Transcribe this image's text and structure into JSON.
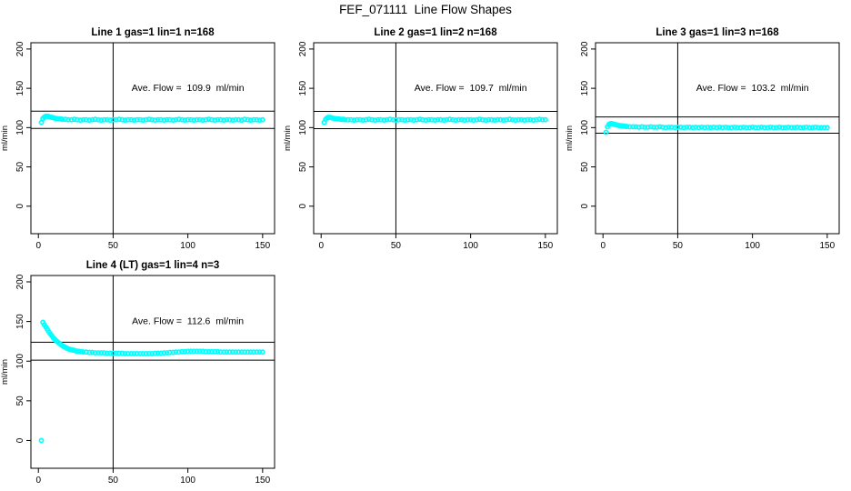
{
  "page_title": "FEF_071111  Line Flow Shapes",
  "colors": {
    "data_marker": "#00FFFF",
    "axis": "#000000",
    "background": "#FFFFFF"
  },
  "chart_data": [
    {
      "type": "scatter",
      "title": "Line 1 gas=1 lin=1 n=168",
      "xlabel": "",
      "ylabel": "ml/min",
      "annotation": "Ave. Flow =  109.9  ml/min",
      "ave_flow": 109.9,
      "xlim": [
        -5,
        158
      ],
      "ylim": [
        -35,
        208
      ],
      "xticks": [
        0,
        50,
        100,
        150
      ],
      "yticks": [
        0,
        50,
        100,
        150,
        200
      ],
      "vline_x": 50,
      "hlines": [
        120.9,
        98.9
      ],
      "grid": false,
      "points": [
        [
          2,
          106.5
        ],
        [
          3,
          111.5
        ],
        [
          4,
          113.5
        ],
        [
          5,
          114.5
        ],
        [
          6,
          114.5
        ],
        [
          7,
          114
        ],
        [
          8,
          113.5
        ],
        [
          9,
          113
        ],
        [
          10,
          112.5
        ],
        [
          11,
          112
        ],
        [
          12,
          111.5
        ],
        [
          13,
          111.5
        ],
        [
          14,
          111
        ],
        [
          15,
          111
        ],
        [
          16,
          110.5
        ],
        [
          18,
          110.5
        ],
        [
          20,
          110
        ],
        [
          22,
          110
        ],
        [
          24,
          110.5
        ],
        [
          26,
          110
        ],
        [
          28,
          109.5
        ],
        [
          30,
          110
        ],
        [
          32,
          110
        ],
        [
          34,
          109.5
        ],
        [
          36,
          110
        ],
        [
          38,
          110.5
        ],
        [
          40,
          110
        ],
        [
          42,
          109.5
        ],
        [
          44,
          110
        ],
        [
          46,
          110
        ],
        [
          48,
          109.5
        ],
        [
          50,
          110
        ],
        [
          52,
          110
        ],
        [
          54,
          110.5
        ],
        [
          56,
          110
        ],
        [
          58,
          109.5
        ],
        [
          60,
          110
        ],
        [
          62,
          110
        ],
        [
          64,
          109.5
        ],
        [
          66,
          110
        ],
        [
          68,
          110
        ],
        [
          70,
          109.5
        ],
        [
          72,
          110
        ],
        [
          74,
          110.5
        ],
        [
          76,
          110
        ],
        [
          78,
          109.5
        ],
        [
          80,
          110
        ],
        [
          82,
          110
        ],
        [
          84,
          109.5
        ],
        [
          86,
          110
        ],
        [
          88,
          110
        ],
        [
          90,
          109.5
        ],
        [
          92,
          110
        ],
        [
          94,
          110.5
        ],
        [
          96,
          110
        ],
        [
          98,
          109.5
        ],
        [
          100,
          110
        ],
        [
          102,
          110
        ],
        [
          104,
          109.5
        ],
        [
          106,
          110
        ],
        [
          108,
          110
        ],
        [
          110,
          109.5
        ],
        [
          112,
          110
        ],
        [
          114,
          110.5
        ],
        [
          116,
          110
        ],
        [
          118,
          109.5
        ],
        [
          120,
          110
        ],
        [
          122,
          110
        ],
        [
          124,
          109.5
        ],
        [
          126,
          110
        ],
        [
          128,
          110
        ],
        [
          130,
          109.5
        ],
        [
          132,
          110
        ],
        [
          134,
          110
        ],
        [
          136,
          109.5
        ],
        [
          138,
          110.5
        ],
        [
          140,
          110
        ],
        [
          142,
          109.5
        ],
        [
          144,
          110
        ],
        [
          146,
          110
        ],
        [
          148,
          109.5
        ],
        [
          150,
          110
        ]
      ]
    },
    {
      "type": "scatter",
      "title": "Line 2 gas=1 lin=2 n=168",
      "xlabel": "",
      "ylabel": "ml/min",
      "annotation": "Ave. Flow =  109.7  ml/min",
      "ave_flow": 109.7,
      "xlim": [
        -5,
        158
      ],
      "ylim": [
        -35,
        208
      ],
      "xticks": [
        0,
        50,
        100,
        150
      ],
      "yticks": [
        0,
        50,
        100,
        150,
        200
      ],
      "vline_x": 50,
      "hlines": [
        120.7,
        98.7
      ],
      "grid": false,
      "points": [
        [
          2,
          106.5
        ],
        [
          3,
          110.5
        ],
        [
          4,
          112.5
        ],
        [
          5,
          113
        ],
        [
          6,
          113
        ],
        [
          7,
          112.5
        ],
        [
          8,
          112
        ],
        [
          9,
          111.5
        ],
        [
          10,
          111.5
        ],
        [
          11,
          111
        ],
        [
          12,
          111
        ],
        [
          13,
          110.5
        ],
        [
          14,
          110.5
        ],
        [
          15,
          110.5
        ],
        [
          16,
          110
        ],
        [
          18,
          110
        ],
        [
          20,
          110
        ],
        [
          22,
          109.5
        ],
        [
          24,
          110
        ],
        [
          26,
          110
        ],
        [
          28,
          109.5
        ],
        [
          30,
          110
        ],
        [
          32,
          110.5
        ],
        [
          34,
          110
        ],
        [
          36,
          109.5
        ],
        [
          38,
          110
        ],
        [
          40,
          110
        ],
        [
          42,
          109.5
        ],
        [
          44,
          110
        ],
        [
          46,
          110.5
        ],
        [
          48,
          110
        ],
        [
          50,
          109.5
        ],
        [
          52,
          110
        ],
        [
          54,
          110
        ],
        [
          56,
          109.5
        ],
        [
          58,
          110
        ],
        [
          60,
          110
        ],
        [
          62,
          109.5
        ],
        [
          64,
          110
        ],
        [
          66,
          110.5
        ],
        [
          68,
          110
        ],
        [
          70,
          109.5
        ],
        [
          72,
          110
        ],
        [
          74,
          110
        ],
        [
          76,
          109.5
        ],
        [
          78,
          110
        ],
        [
          80,
          110
        ],
        [
          82,
          109.5
        ],
        [
          84,
          110
        ],
        [
          86,
          110.5
        ],
        [
          88,
          110
        ],
        [
          90,
          109.5
        ],
        [
          92,
          110
        ],
        [
          94,
          110
        ],
        [
          96,
          109.5
        ],
        [
          98,
          110
        ],
        [
          100,
          110
        ],
        [
          102,
          109.5
        ],
        [
          104,
          110
        ],
        [
          106,
          110.5
        ],
        [
          108,
          110
        ],
        [
          110,
          109.5
        ],
        [
          112,
          110
        ],
        [
          114,
          110
        ],
        [
          116,
          109.5
        ],
        [
          118,
          110
        ],
        [
          120,
          110
        ],
        [
          122,
          109.5
        ],
        [
          124,
          110
        ],
        [
          126,
          110.5
        ],
        [
          128,
          110
        ],
        [
          130,
          109.5
        ],
        [
          132,
          110
        ],
        [
          134,
          110
        ],
        [
          136,
          109.5
        ],
        [
          138,
          110
        ],
        [
          140,
          110
        ],
        [
          142,
          109.5
        ],
        [
          144,
          110
        ],
        [
          146,
          110.5
        ],
        [
          148,
          110
        ],
        [
          150,
          110
        ]
      ]
    },
    {
      "type": "scatter",
      "title": "Line 3 gas=1 lin=3 n=168",
      "xlabel": "",
      "ylabel": "ml/min",
      "annotation": "Ave. Flow =  103.2  ml/min",
      "ave_flow": 103.2,
      "xlim": [
        -5,
        158
      ],
      "ylim": [
        -35,
        208
      ],
      "xticks": [
        0,
        50,
        100,
        150
      ],
      "yticks": [
        0,
        50,
        100,
        150,
        200
      ],
      "vline_x": 50,
      "hlines": [
        113.5,
        92.9
      ],
      "grid": false,
      "points": [
        [
          2,
          94
        ],
        [
          3,
          101
        ],
        [
          4,
          104
        ],
        [
          5,
          105
        ],
        [
          6,
          105
        ],
        [
          7,
          104.5
        ],
        [
          8,
          104
        ],
        [
          9,
          103.5
        ],
        [
          10,
          103
        ],
        [
          11,
          102.5
        ],
        [
          12,
          102.5
        ],
        [
          13,
          102
        ],
        [
          14,
          102
        ],
        [
          15,
          101.5
        ],
        [
          16,
          101.5
        ],
        [
          18,
          101
        ],
        [
          20,
          101
        ],
        [
          22,
          101
        ],
        [
          24,
          100.5
        ],
        [
          26,
          101
        ],
        [
          28,
          100.5
        ],
        [
          30,
          100.5
        ],
        [
          32,
          101
        ],
        [
          34,
          100.5
        ],
        [
          36,
          100.5
        ],
        [
          38,
          101
        ],
        [
          40,
          100.5
        ],
        [
          42,
          100
        ],
        [
          44,
          100.5
        ],
        [
          46,
          100.5
        ],
        [
          48,
          100
        ],
        [
          50,
          100.5
        ],
        [
          52,
          100.5
        ],
        [
          54,
          100
        ],
        [
          56,
          100.5
        ],
        [
          58,
          100.5
        ],
        [
          60,
          100
        ],
        [
          62,
          100.5
        ],
        [
          64,
          100
        ],
        [
          66,
          100.5
        ],
        [
          68,
          100
        ],
        [
          70,
          100.5
        ],
        [
          72,
          100
        ],
        [
          74,
          100.5
        ],
        [
          76,
          100
        ],
        [
          78,
          100.5
        ],
        [
          80,
          100
        ],
        [
          82,
          100.5
        ],
        [
          84,
          100
        ],
        [
          86,
          100
        ],
        [
          88,
          100.5
        ],
        [
          90,
          100
        ],
        [
          92,
          100
        ],
        [
          94,
          100.5
        ],
        [
          96,
          100
        ],
        [
          98,
          100
        ],
        [
          100,
          100.5
        ],
        [
          102,
          100
        ],
        [
          104,
          100
        ],
        [
          106,
          100.5
        ],
        [
          108,
          100
        ],
        [
          110,
          100
        ],
        [
          112,
          100.5
        ],
        [
          114,
          100
        ],
        [
          116,
          100
        ],
        [
          118,
          100.5
        ],
        [
          120,
          100
        ],
        [
          122,
          100
        ],
        [
          124,
          100.5
        ],
        [
          126,
          100
        ],
        [
          128,
          100
        ],
        [
          130,
          100.5
        ],
        [
          132,
          100
        ],
        [
          134,
          100
        ],
        [
          136,
          100.5
        ],
        [
          138,
          100
        ],
        [
          140,
          100
        ],
        [
          142,
          100.5
        ],
        [
          144,
          100
        ],
        [
          146,
          100
        ],
        [
          148,
          100
        ],
        [
          150,
          100
        ]
      ]
    },
    {
      "type": "scatter",
      "title": "Line 4 (LT) gas=1 lin=4 n=3",
      "xlabel": "",
      "ylabel": "ml/min",
      "annotation": "Ave. Flow =  112.6  ml/min",
      "ave_flow": 112.6,
      "xlim": [
        -5,
        158
      ],
      "ylim": [
        -35,
        208
      ],
      "xticks": [
        0,
        50,
        100,
        150
      ],
      "yticks": [
        0,
        50,
        100,
        150,
        200
      ],
      "vline_x": 50,
      "hlines": [
        123.9,
        101.3
      ],
      "grid": false,
      "points": [
        [
          2,
          0
        ],
        [
          3,
          149
        ],
        [
          4,
          146
        ],
        [
          5,
          143
        ],
        [
          6,
          140
        ],
        [
          7,
          137
        ],
        [
          8,
          134.5
        ],
        [
          9,
          132
        ],
        [
          10,
          129.5
        ],
        [
          11,
          127.5
        ],
        [
          12,
          125.5
        ],
        [
          13,
          124
        ],
        [
          14,
          122.5
        ],
        [
          15,
          121
        ],
        [
          16,
          119.5
        ],
        [
          17,
          118.5
        ],
        [
          18,
          117.5
        ],
        [
          19,
          116.5
        ],
        [
          20,
          115.5
        ],
        [
          21,
          115
        ],
        [
          22,
          114.5
        ],
        [
          23,
          114
        ],
        [
          24,
          113.5
        ],
        [
          25,
          113
        ],
        [
          26,
          112.5
        ],
        [
          27,
          112.5
        ],
        [
          28,
          112
        ],
        [
          29,
          112
        ],
        [
          30,
          111.5
        ],
        [
          32,
          111.5
        ],
        [
          34,
          111
        ],
        [
          36,
          111
        ],
        [
          38,
          110.5
        ],
        [
          40,
          110.5
        ],
        [
          42,
          110.5
        ],
        [
          44,
          110.5
        ],
        [
          46,
          110
        ],
        [
          48,
          110
        ],
        [
          50,
          110
        ],
        [
          52,
          110
        ],
        [
          54,
          110
        ],
        [
          56,
          110
        ],
        [
          58,
          109.5
        ],
        [
          60,
          109.5
        ],
        [
          62,
          109.5
        ],
        [
          64,
          109.5
        ],
        [
          66,
          109.5
        ],
        [
          68,
          109.5
        ],
        [
          70,
          109.5
        ],
        [
          72,
          109.5
        ],
        [
          74,
          109.5
        ],
        [
          76,
          109.5
        ],
        [
          78,
          110
        ],
        [
          80,
          110
        ],
        [
          82,
          110
        ],
        [
          84,
          110.5
        ],
        [
          86,
          110.5
        ],
        [
          88,
          111
        ],
        [
          90,
          111
        ],
        [
          92,
          111.5
        ],
        [
          94,
          111.5
        ],
        [
          96,
          112
        ],
        [
          98,
          112
        ],
        [
          100,
          112.5
        ],
        [
          102,
          112.5
        ],
        [
          104,
          112.5
        ],
        [
          106,
          112.5
        ],
        [
          108,
          112.5
        ],
        [
          110,
          112.5
        ],
        [
          112,
          112
        ],
        [
          114,
          112
        ],
        [
          116,
          112
        ],
        [
          118,
          112
        ],
        [
          120,
          112
        ],
        [
          122,
          111.5
        ],
        [
          124,
          111.5
        ],
        [
          126,
          111.5
        ],
        [
          128,
          111.5
        ],
        [
          130,
          111.5
        ],
        [
          132,
          111.5
        ],
        [
          134,
          111.5
        ],
        [
          136,
          111.5
        ],
        [
          138,
          111.5
        ],
        [
          140,
          111.5
        ],
        [
          142,
          111.5
        ],
        [
          144,
          111.5
        ],
        [
          146,
          111.5
        ],
        [
          148,
          111.5
        ],
        [
          150,
          111.5
        ]
      ]
    }
  ]
}
